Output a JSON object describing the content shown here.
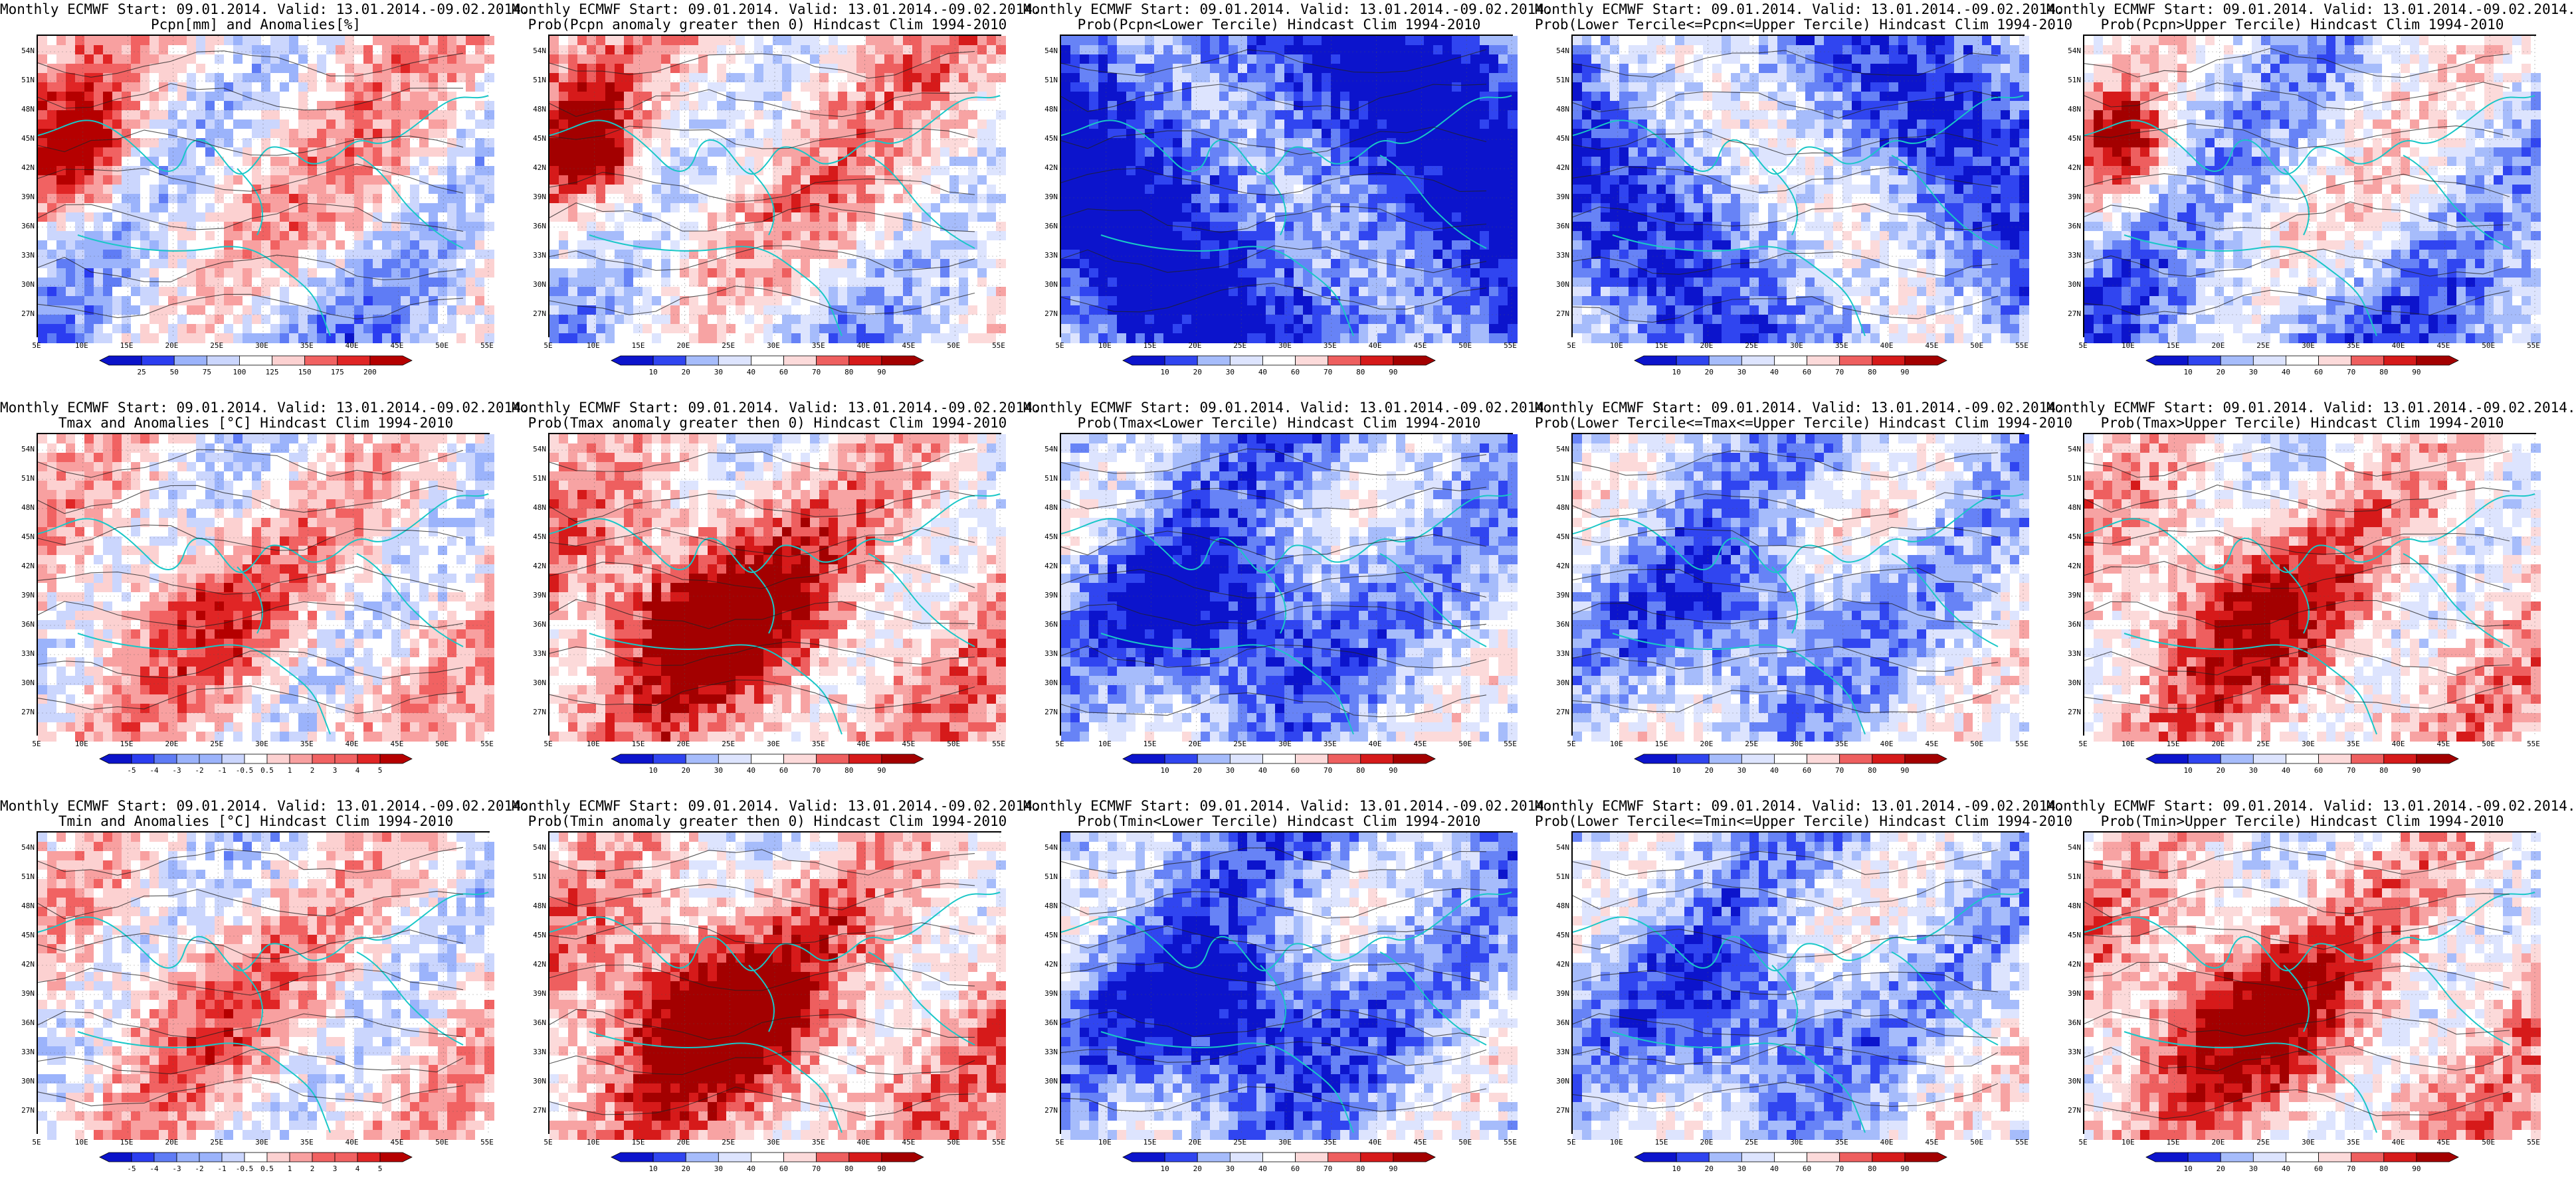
{
  "palettes": {
    "blue_red": [
      "#0b13c9",
      "#2b3df0",
      "#5f7cf5",
      "#9bb3fb",
      "#cbd6fd",
      "#ffffff",
      "#fcd1d1",
      "#f8a0a0",
      "#f16262",
      "#e02525",
      "#b50000"
    ],
    "prob": [
      "#0c14cc",
      "#3045f0",
      "#6783f6",
      "#a6bcfb",
      "#dde4fe",
      "#ffffff",
      "#fcdada",
      "#f7a3a3",
      "#ee5f5f",
      "#d61a1a",
      "#a30000"
    ]
  },
  "lat_labels": [
    "54N",
    "51N",
    "48N",
    "45N",
    "42N",
    "39N",
    "36N",
    "33N",
    "30N",
    "27N"
  ],
  "lon_labels": [
    "5E",
    "10E",
    "15E",
    "20E",
    "25E",
    "30E",
    "35E",
    "40E",
    "45E",
    "50E",
    "55E"
  ],
  "panels": [
    {
      "title1": "Monthly ECMWF Start: 09.01.2014. Valid: 13.01.2014.-09.02.2014.",
      "title2": "Pcpn[mm] and Anomalies[%]",
      "cb": [
        "25",
        "50",
        "75",
        "100",
        "125",
        "150",
        "175",
        "200"
      ],
      "pal": "blue_red",
      "tone": 0.1,
      "mode": "a"
    },
    {
      "title1": "Monthly ECMWF Start: 09.01.2014. Valid: 13.01.2014.-09.02.2014.",
      "title2": "Prob(Pcpn anomaly greater then 0) Hindcast Clim 1994-2010",
      "cb": [
        "10",
        "20",
        "30",
        "40",
        "60",
        "70",
        "80",
        "90"
      ],
      "pal": "prob",
      "tone": 0.15,
      "mode": "a"
    },
    {
      "title1": "Monthly ECMWF Start: 09.01.2014. Valid: 13.01.2014.-09.02.2014.",
      "title2": "Prob(Pcpn<Lower Tercile) Hindcast Clim 1994-2010",
      "cb": [
        "10",
        "20",
        "30",
        "40",
        "60",
        "70",
        "80",
        "90"
      ],
      "pal": "prob",
      "tone": -0.75,
      "mode": "b"
    },
    {
      "title1": "Monthly ECMWF Start: 09.01.2014. Valid: 13.01.2014.-09.02.2014.",
      "title2": "Prob(Lower Tercile<=Pcpn<=Upper Tercile) Hindcast Clim 1994-2010",
      "cb": [
        "10",
        "20",
        "30",
        "40",
        "60",
        "70",
        "80",
        "90"
      ],
      "pal": "prob",
      "tone": -0.45,
      "mode": "b"
    },
    {
      "title1": "Monthly ECMWF Start: 09.01.2014. Valid: 13.01.2014.-09.02.2014.",
      "title2": "Prob(Pcpn>Upper Tercile) Hindcast Clim 1994-2010",
      "cb": [
        "10",
        "20",
        "30",
        "40",
        "60",
        "70",
        "80",
        "90"
      ],
      "pal": "prob",
      "tone": -0.15,
      "mode": "a"
    },
    {
      "title1": "Monthly ECMWF Start: 09.01.2014. Valid: 13.01.2014.-09.02.2014.",
      "title2": "Tmax and Anomalies [°C] Hindcast Clim 1994-2010",
      "cb": [
        "-5",
        "-4",
        "-3",
        "-2",
        "-1",
        "-0.5",
        "0.5",
        "1",
        "2",
        "3",
        "4",
        "5"
      ],
      "pal": "blue_red",
      "tone": 0.35,
      "mode": "c"
    },
    {
      "title1": "Monthly ECMWF Start: 09.01.2014. Valid: 13.01.2014.-09.02.2014.",
      "title2": "Prob(Tmax anomaly greater then 0) Hindcast Clim 1994-2010",
      "cb": [
        "10",
        "20",
        "30",
        "40",
        "60",
        "70",
        "80",
        "90"
      ],
      "pal": "prob",
      "tone": 0.8,
      "mode": "c"
    },
    {
      "title1": "Monthly ECMWF Start: 09.01.2014. Valid: 13.01.2014.-09.02.2014.",
      "title2": "Prob(Tmax<Lower Tercile) Hindcast Clim 1994-2010",
      "cb": [
        "10",
        "20",
        "30",
        "40",
        "60",
        "70",
        "80",
        "90"
      ],
      "pal": "prob",
      "tone": -0.8,
      "mode": "c"
    },
    {
      "title1": "Monthly ECMWF Start: 09.01.2014. Valid: 13.01.2014.-09.02.2014.",
      "title2": "Prob(Lower Tercile<=Tmax<=Upper Tercile) Hindcast Clim 1994-2010",
      "cb": [
        "10",
        "20",
        "30",
        "40",
        "60",
        "70",
        "80",
        "90"
      ],
      "pal": "prob",
      "tone": -0.55,
      "mode": "c"
    },
    {
      "title1": "Monthly ECMWF Start: 09.01.2014. Valid: 13.01.2014.-09.02.2014.",
      "title2": "Prob(Tmax>Upper Tercile) Hindcast Clim 1994-2010",
      "cb": [
        "10",
        "20",
        "30",
        "40",
        "60",
        "70",
        "80",
        "90"
      ],
      "pal": "prob",
      "tone": 0.55,
      "mode": "c"
    },
    {
      "title1": "Monthly ECMWF Start: 09.01.2014. Valid: 13.01.2014.-09.02.2014.",
      "title2": "Tmin and Anomalies [°C] Hindcast Clim 1994-2010",
      "cb": [
        "-5",
        "-4",
        "-3",
        "-2",
        "-1",
        "-0.5",
        "0.5",
        "1",
        "2",
        "3",
        "4",
        "5"
      ],
      "pal": "blue_red",
      "tone": 0.3,
      "mode": "c"
    },
    {
      "title1": "Monthly ECMWF Start: 09.01.2014. Valid: 13.01.2014.-09.02.2014.",
      "title2": "Prob(Tmin anomaly greater then 0) Hindcast Clim 1994-2010",
      "cb": [
        "10",
        "20",
        "30",
        "40",
        "60",
        "70",
        "80",
        "90"
      ],
      "pal": "prob",
      "tone": 0.85,
      "mode": "c"
    },
    {
      "title1": "Monthly ECMWF Start: 09.01.2014. Valid: 13.01.2014.-09.02.2014.",
      "title2": "Prob(Tmin<Lower Tercile) Hindcast Clim 1994-2010",
      "cb": [
        "10",
        "20",
        "30",
        "40",
        "60",
        "70",
        "80",
        "90"
      ],
      "pal": "prob",
      "tone": -0.85,
      "mode": "c"
    },
    {
      "title1": "Monthly ECMWF Start: 09.01.2014. Valid: 13.01.2014.-09.02.2014.",
      "title2": "Prob(Lower Tercile<=Tmin<=Upper Tercile) Hindcast Clim 1994-2010",
      "cb": [
        "10",
        "20",
        "30",
        "40",
        "60",
        "70",
        "80",
        "90"
      ],
      "pal": "prob",
      "tone": -0.6,
      "mode": "c"
    },
    {
      "title1": "Monthly ECMWF Start: 09.01.2014. Valid: 13.01.2014.-09.02.2014.",
      "title2": "Prob(Tmin>Upper Tercile) Hindcast Clim 1994-2010",
      "cb": [
        "10",
        "20",
        "30",
        "40",
        "60",
        "70",
        "80",
        "90"
      ],
      "pal": "prob",
      "tone": 0.65,
      "mode": "c"
    }
  ]
}
